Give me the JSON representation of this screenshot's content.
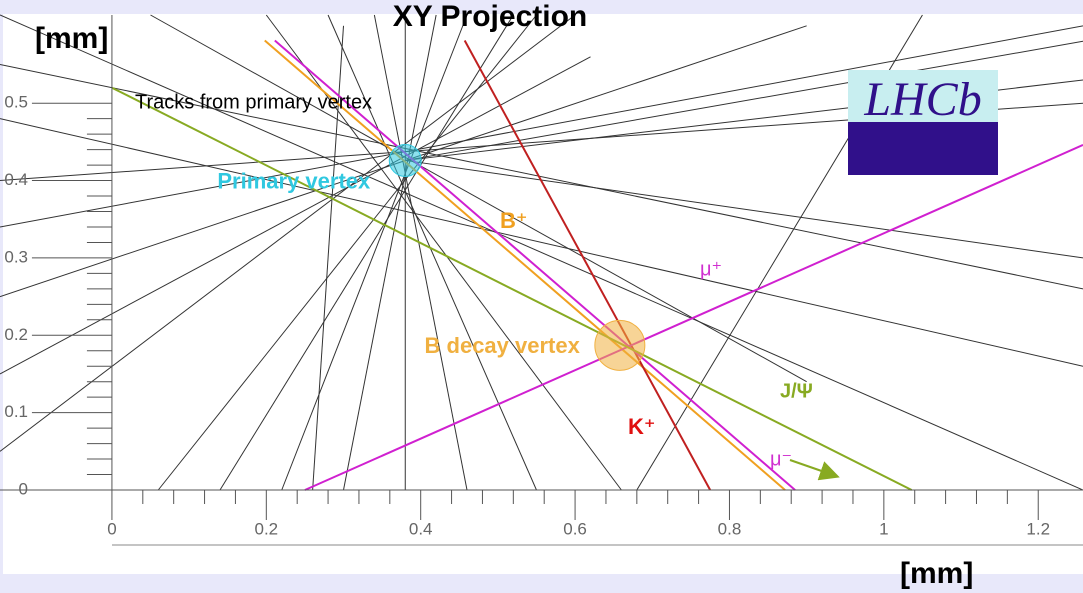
{
  "chart_data": {
    "type": "tracks",
    "title": "XY Projection",
    "y_label": "[mm]",
    "x_label": "[mm]",
    "logo": "LHCb",
    "xlim": [
      -0.145,
      1.258
    ],
    "ylim": [
      0,
      0.614
    ],
    "xticks": [
      0,
      0.2,
      0.4,
      0.6,
      0.8,
      1,
      1.2
    ],
    "yticks": [
      0,
      0.1,
      0.2,
      0.3,
      0.4,
      0.5
    ],
    "vertices": [
      {
        "name": "Primary vertex",
        "x": 0.38,
        "y": 0.426,
        "color": "#30c8e0"
      },
      {
        "name": "B decay vertex",
        "x": 0.658,
        "y": 0.187,
        "color": "#f0b040"
      }
    ],
    "annotations": [
      {
        "text": "Tracks from primary vertex",
        "color": "#000000"
      },
      {
        "text": "B⁺",
        "color": "#f0a020"
      },
      {
        "text": "μ⁺",
        "color": "#d030d0"
      },
      {
        "text": "K⁺",
        "color": "#e01010"
      },
      {
        "text": "J/Ψ",
        "color": "#88aa22"
      },
      {
        "text": "μ⁻",
        "color": "#d030d0"
      }
    ],
    "series": [
      {
        "color": "#333333",
        "x": [
          0.06,
          0.55
        ],
        "y": [
          0,
          0.614
        ]
      },
      {
        "color": "#333333",
        "x": [
          0.22,
          0.46
        ],
        "y": [
          0,
          0.614
        ]
      },
      {
        "color": "#333333",
        "x": [
          0.3,
          0.42
        ],
        "y": [
          0,
          0.614
        ]
      },
      {
        "color": "#333333",
        "x": [
          0.38,
          0.38
        ],
        "y": [
          0,
          0.614
        ]
      },
      {
        "color": "#333333",
        "x": [
          0.46,
          0.34
        ],
        "y": [
          0,
          0.614
        ]
      },
      {
        "color": "#333333",
        "x": [
          0.55,
          0.28
        ],
        "y": [
          0,
          0.614
        ]
      },
      {
        "color": "#333333",
        "x": [
          0.66,
          0.2
        ],
        "y": [
          0,
          0.614
        ]
      },
      {
        "color": "#333333",
        "x": [
          0.14,
          0.52
        ],
        "y": [
          0,
          0.614
        ]
      },
      {
        "color": "#333333",
        "x": [
          -0.145,
          0.6
        ],
        "y": [
          0.05,
          0.614
        ]
      },
      {
        "color": "#333333",
        "x": [
          -0.145,
          0.62
        ],
        "y": [
          0.15,
          0.56
        ]
      },
      {
        "color": "#333333",
        "x": [
          -0.145,
          0.9
        ],
        "y": [
          0.25,
          0.6
        ]
      },
      {
        "color": "#333333",
        "x": [
          -0.145,
          1.258
        ],
        "y": [
          0.34,
          0.6
        ]
      },
      {
        "color": "#333333",
        "x": [
          -0.145,
          1.258
        ],
        "y": [
          0.48,
          0.16
        ]
      },
      {
        "color": "#333333",
        "x": [
          -0.145,
          1.258
        ],
        "y": [
          0.4,
          0.5
        ]
      },
      {
        "color": "#333333",
        "x": [
          0.05,
          0.9
        ],
        "y": [
          0.614,
          0.14
        ]
      },
      {
        "color": "#333333",
        "x": [
          -0.145,
          1.258
        ],
        "y": [
          0.55,
          0.26
        ]
      },
      {
        "color": "#333333",
        "x": [
          0.38,
          1.258
        ],
        "y": [
          0.426,
          0.3
        ]
      },
      {
        "color": "#333333",
        "x": [
          0.38,
          1.258
        ],
        "y": [
          0.426,
          0.53
        ]
      },
      {
        "color": "#333333",
        "x": [
          0.38,
          1.258
        ],
        "y": [
          0.426,
          0.58
        ]
      },
      {
        "color": "#333333",
        "x": [
          -0.145,
          1.258
        ],
        "y": [
          0.614,
          0
        ]
      },
      {
        "color": "#333333",
        "x": [
          0.26,
          0.3
        ],
        "y": [
          0,
          0.6
        ]
      },
      {
        "color": "#333333",
        "x": [
          0.68,
          1.05
        ],
        "y": [
          0,
          0.614
        ]
      },
      {
        "name": "B⁺",
        "color": "#f0a020",
        "x": [
          0.198,
          0.872
        ],
        "y": [
          0.581,
          0
        ]
      },
      {
        "name": "K⁺",
        "color": "#c02020",
        "x": [
          0.457,
          0.775
        ],
        "y": [
          0.581,
          0
        ]
      },
      {
        "name": "μ⁺",
        "color": "#d020d0",
        "x": [
          0.25,
          1.258
        ],
        "y": [
          0,
          0.446
        ]
      },
      {
        "name": "μ⁻",
        "color": "#d020d0",
        "x": [
          0.211,
          0.885
        ],
        "y": [
          0.581,
          0
        ]
      },
      {
        "name": "J/Ψ",
        "color": "#88aa22",
        "x": [
          0,
          1.036
        ],
        "y": [
          0.52,
          0
        ]
      }
    ]
  }
}
